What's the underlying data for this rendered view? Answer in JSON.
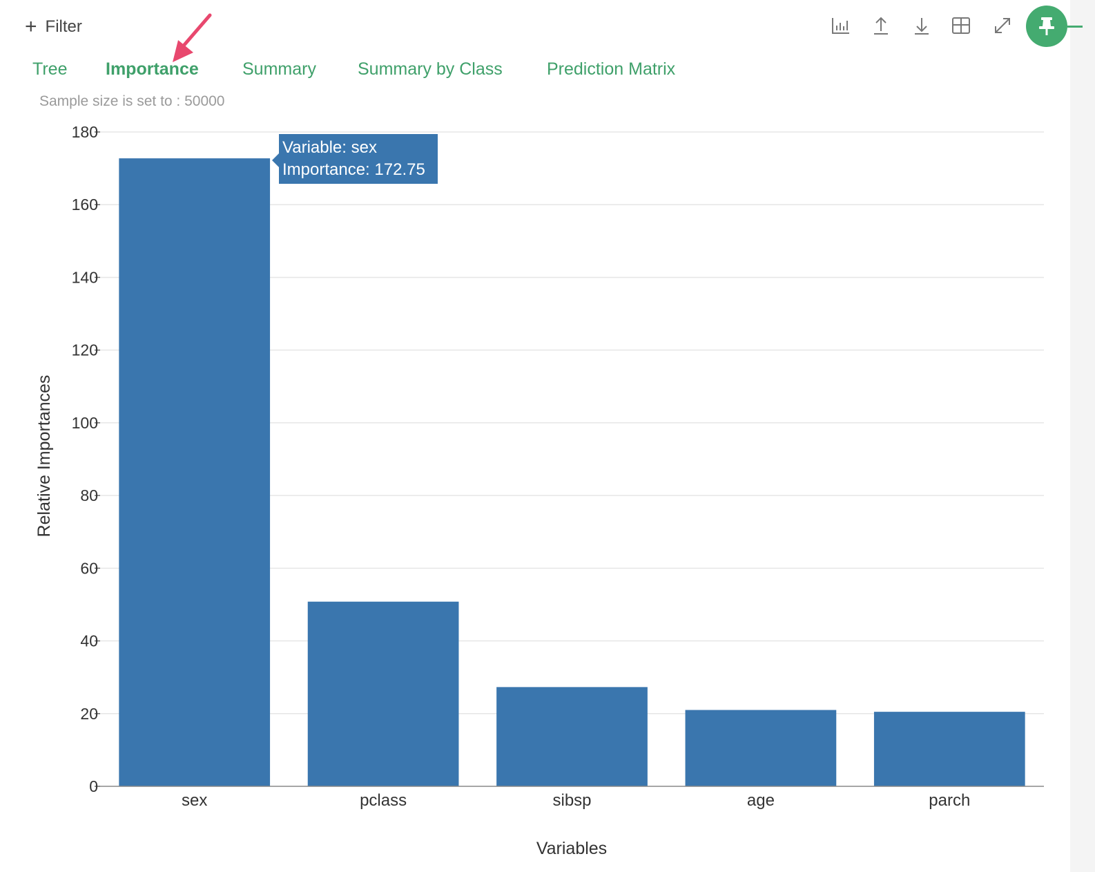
{
  "filter": {
    "label": "Filter"
  },
  "toolbar": {
    "icons": [
      "bar-chart-icon",
      "upload-icon",
      "download-icon",
      "table-grid-icon",
      "expand-icon"
    ],
    "pin_icon": "pin-icon"
  },
  "tabs": [
    {
      "label": "Tree",
      "active": false
    },
    {
      "label": "Importance",
      "active": true
    },
    {
      "label": "Summary",
      "active": false
    },
    {
      "label": "Summary by Class",
      "active": false
    },
    {
      "label": "Prediction Matrix",
      "active": false
    }
  ],
  "sample_note": "Sample size is set to : 50000",
  "tooltip": {
    "variable_line": "Variable: sex",
    "importance_line": "Importance: 172.75"
  },
  "colors": {
    "accent": "#3fa06a",
    "bar": "#3a76ae",
    "pin": "#44ab70",
    "arrow": "#e8486e"
  },
  "chart_data": {
    "type": "bar",
    "categories": [
      "sex",
      "pclass",
      "sibsp",
      "age",
      "parch"
    ],
    "values": [
      172.75,
      50.8,
      27.3,
      21.0,
      20.5
    ],
    "xlabel": "Variables",
    "ylabel": "Relative Importances",
    "ylim": [
      0,
      180
    ],
    "yticks": [
      0,
      20,
      40,
      60,
      80,
      100,
      120,
      140,
      160,
      180
    ],
    "grid": true
  }
}
